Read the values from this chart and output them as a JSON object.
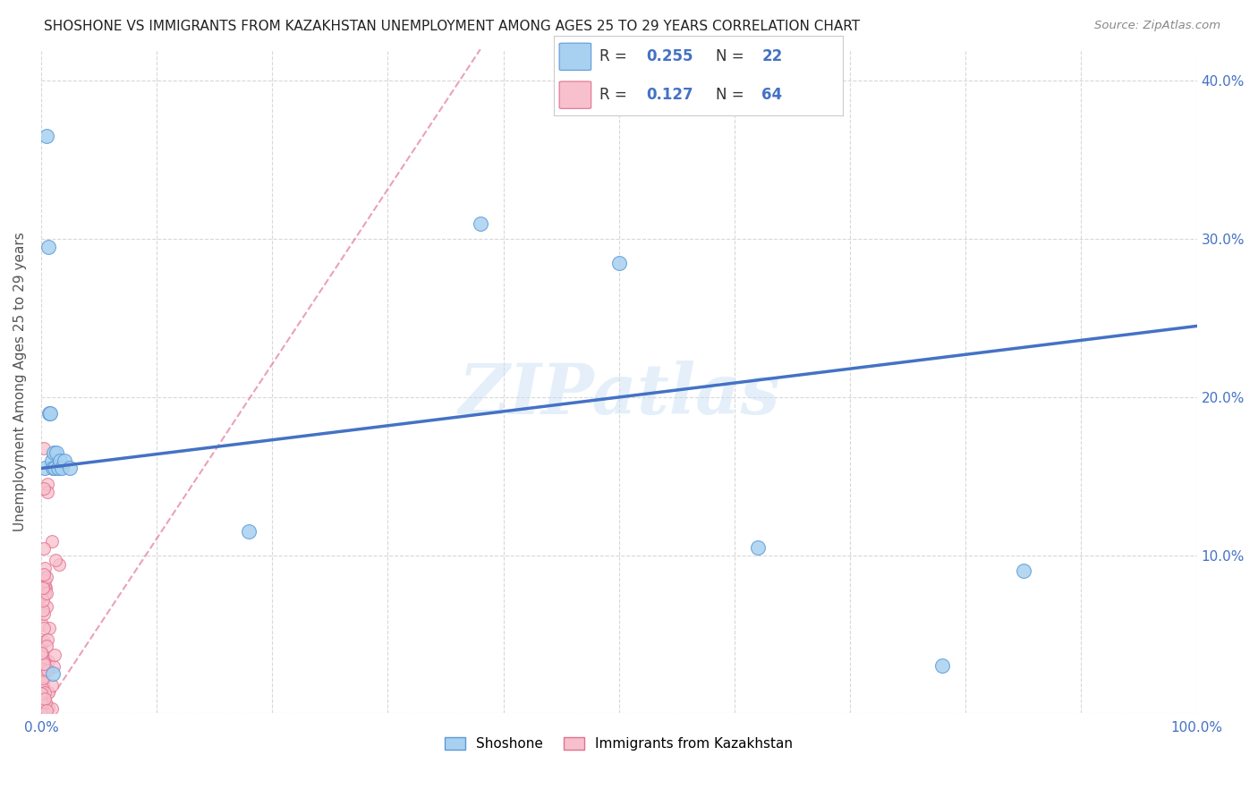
{
  "title": "SHOSHONE VS IMMIGRANTS FROM KAZAKHSTAN UNEMPLOYMENT AMONG AGES 25 TO 29 YEARS CORRELATION CHART",
  "source": "Source: ZipAtlas.com",
  "ylabel": "Unemployment Among Ages 25 to 29 years",
  "xlim": [
    0,
    1.0
  ],
  "ylim": [
    0,
    0.42
  ],
  "x_ticks": [
    0.0,
    0.1,
    0.2,
    0.3,
    0.4,
    0.5,
    0.6,
    0.7,
    0.8,
    0.9,
    1.0
  ],
  "x_tick_labels": [
    "0.0%",
    "",
    "",
    "",
    "",
    "",
    "",
    "",
    "",
    "",
    "100.0%"
  ],
  "y_ticks": [
    0.0,
    0.1,
    0.2,
    0.3,
    0.4
  ],
  "y_tick_labels_right": [
    "",
    "10.0%",
    "20.0%",
    "30.0%",
    "40.0%"
  ],
  "shoshone_R": 0.255,
  "shoshone_N": 22,
  "kazakhstan_R": 0.127,
  "kazakhstan_N": 64,
  "watermark": "ZIPatlas",
  "shoshone_color": "#a8d0f0",
  "shoshone_edge_color": "#5b9bd5",
  "shoshone_line_color": "#4472C4",
  "kazakhstan_color": "#f7c0cc",
  "kazakhstan_edge_color": "#e07090",
  "kazakhstan_line_color": "#e07090",
  "background_color": "#ffffff",
  "grid_color": "#d8d8d8",
  "shoshone_x": [
    0.003,
    0.005,
    0.006,
    0.007,
    0.008,
    0.009,
    0.01,
    0.011,
    0.012,
    0.013,
    0.015,
    0.016,
    0.018,
    0.02,
    0.025,
    0.18,
    0.38,
    0.5,
    0.62,
    0.78,
    0.85,
    0.01
  ],
  "shoshone_y": [
    0.155,
    0.365,
    0.295,
    0.19,
    0.19,
    0.16,
    0.155,
    0.165,
    0.155,
    0.165,
    0.155,
    0.16,
    0.155,
    0.16,
    0.155,
    0.115,
    0.31,
    0.285,
    0.105,
    0.03,
    0.09,
    0.025
  ],
  "shoshone_line_x0": 0.0,
  "shoshone_line_x1": 1.0,
  "shoshone_line_y0": 0.155,
  "shoshone_line_y1": 0.245,
  "kaz_line_x0": 0.0,
  "kaz_line_x1": 0.38,
  "kaz_line_y0": 0.0,
  "kaz_line_y1": 0.42,
  "legend_R1": "0.255",
  "legend_N1": "22",
  "legend_R2": "0.127",
  "legend_N2": "64",
  "legend_label1": "Shoshone",
  "legend_label2": "Immigrants from Kazakhstan"
}
